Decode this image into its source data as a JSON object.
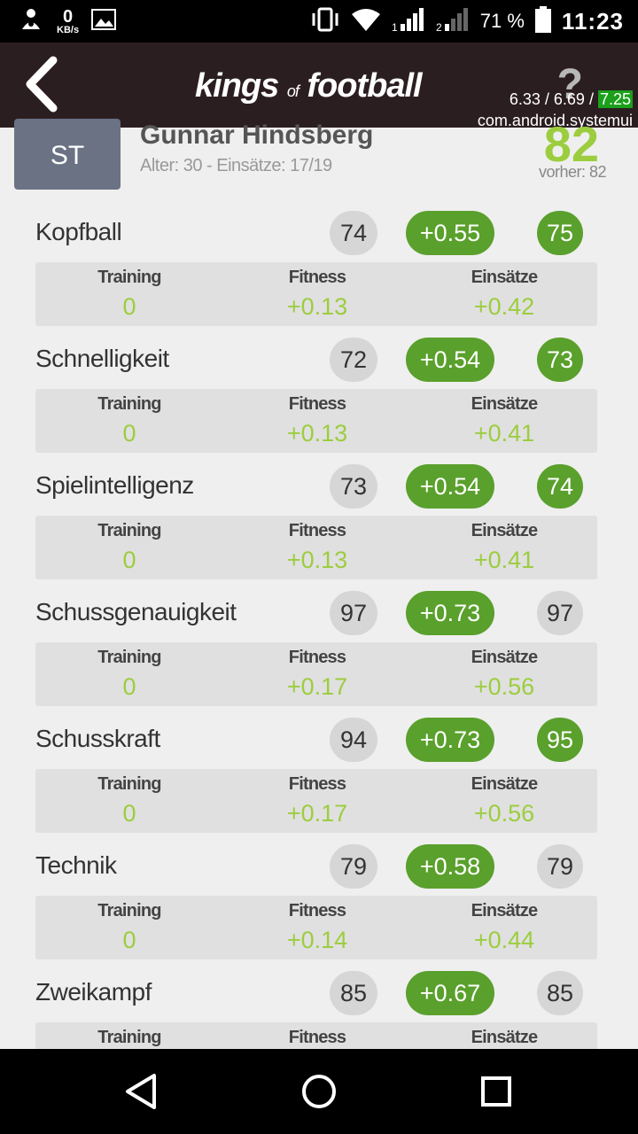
{
  "status_bar": {
    "net_speed_value": "0",
    "net_speed_unit": "KB/s",
    "battery_percent": "71 %",
    "time": "11:23",
    "sim1_label": "1",
    "sim2_label": "2"
  },
  "header": {
    "logo_kings": "kings",
    "logo_of": "of",
    "logo_football": "football",
    "help_label": "?",
    "overlay_line1_prefix": "6.33 / 6.69 / ",
    "overlay_line1_highlight": "7.25",
    "overlay_line2": "com.android.systemui"
  },
  "player": {
    "position": "ST",
    "name": "Gunnar Hindsberg",
    "subtitle": "Alter: 30 - Einsätze: 17/19",
    "rating": "82",
    "previous": "vorher: 82"
  },
  "breakdown_labels": {
    "training": "Training",
    "fitness": "Fitness",
    "einsaetze": "Einsätze"
  },
  "attributes": [
    {
      "name": "Kopfball",
      "old": "74",
      "delta": "+0.55",
      "new": "75",
      "new_up": true,
      "training": "0",
      "fitness": "+0.13",
      "einsaetze": "+0.42"
    },
    {
      "name": "Schnelligkeit",
      "old": "72",
      "delta": "+0.54",
      "new": "73",
      "new_up": true,
      "training": "0",
      "fitness": "+0.13",
      "einsaetze": "+0.41"
    },
    {
      "name": "Spielintelligenz",
      "old": "73",
      "delta": "+0.54",
      "new": "74",
      "new_up": true,
      "training": "0",
      "fitness": "+0.13",
      "einsaetze": "+0.41"
    },
    {
      "name": "Schussgenauigkeit",
      "old": "97",
      "delta": "+0.73",
      "new": "97",
      "new_up": false,
      "training": "0",
      "fitness": "+0.17",
      "einsaetze": "+0.56"
    },
    {
      "name": "Schusskraft",
      "old": "94",
      "delta": "+0.73",
      "new": "95",
      "new_up": true,
      "training": "0",
      "fitness": "+0.17",
      "einsaetze": "+0.56"
    },
    {
      "name": "Technik",
      "old": "79",
      "delta": "+0.58",
      "new": "79",
      "new_up": false,
      "training": "0",
      "fitness": "+0.14",
      "einsaetze": "+0.44"
    },
    {
      "name": "Zweikampf",
      "old": "85",
      "delta": "+0.67",
      "new": "85",
      "new_up": false,
      "training": "",
      "fitness": "",
      "einsaetze": ""
    }
  ],
  "colors": {
    "header_bg": "#2b1e21",
    "accent_green": "#5aa02c",
    "light_green_text": "#9ccd3e",
    "position_badge": "#6a7283"
  },
  "icons": {
    "status_left": [
      "notification-icon",
      "image-icon"
    ],
    "status_right": [
      "vibrate-icon",
      "wifi-icon",
      "signal-icon",
      "signal-icon",
      "battery-icon"
    ],
    "nav": [
      "back-triangle-icon",
      "home-circle-icon",
      "recents-square-icon"
    ]
  }
}
